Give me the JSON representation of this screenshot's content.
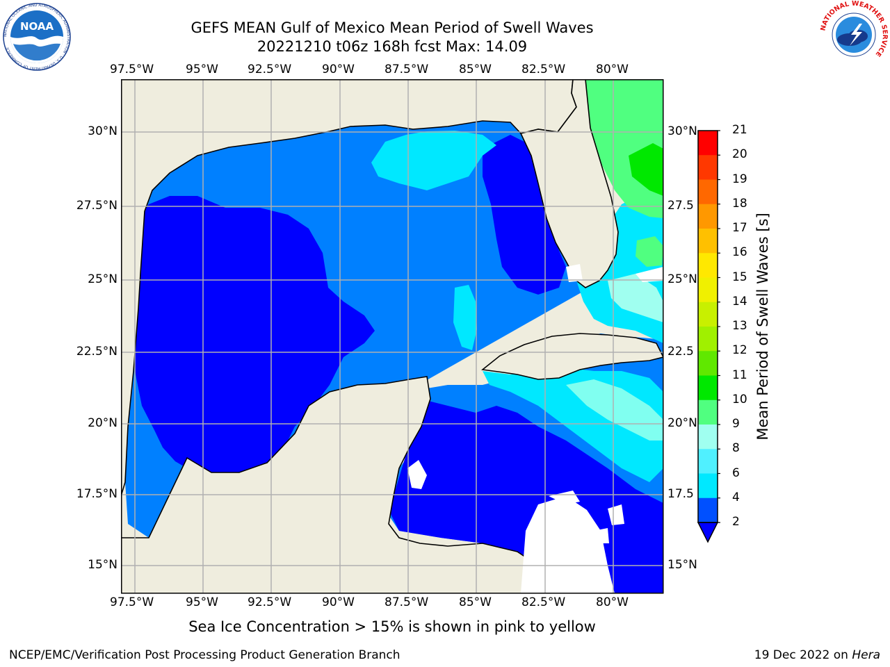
{
  "header": {
    "title": "GEFS MEAN Gulf of Mexico Mean Period of Swell Waves",
    "subtitle": "20221210 t06z 168h fcst   Max: 14.09"
  },
  "logos": {
    "noaa": {
      "text": "NOAA",
      "ring_text": "NATIONAL OCEANIC AND ATMOSPHERIC ADMINISTRATION · U.S. DEPARTMENT OF COMMERCE"
    },
    "nws": {
      "ring_text": "NATIONAL WEATHER SERVICE"
    }
  },
  "map": {
    "lon_labels": [
      "97.5°W",
      "95°W",
      "92.5°W",
      "90°W",
      "87.5°W",
      "85°W",
      "82.5°W",
      "80°W"
    ],
    "lat_labels_left": [
      "30°N",
      "27.5°N",
      "25°N",
      "22.5°N",
      "20°N",
      "17.5°N",
      "15°N"
    ],
    "lat_labels_right": [
      "30°N",
      "27.5",
      "25°N",
      "22.5",
      "20°N",
      "17.5",
      "15°N"
    ],
    "colors": {
      "land": "#efedde",
      "gridline": "#b0b0b0",
      "coast": "#000000"
    }
  },
  "colorbar": {
    "label": "Mean Period of Swell Waves [s]",
    "ticks": [
      "2",
      "4",
      "6",
      "8",
      "9",
      "10",
      "11",
      "12",
      "13",
      "14",
      "15",
      "16",
      "17",
      "18",
      "19",
      "20",
      "21"
    ],
    "colors": [
      "#0050ff",
      "#00c8ff",
      "#00e8ff",
      "#50f0ff",
      "#a0fff0",
      "#50ff80",
      "#00e800",
      "#60e800",
      "#a0f000",
      "#c8f000",
      "#f0f000",
      "#ffe800",
      "#ffc000",
      "#ff9800",
      "#ff6800",
      "#ff3800",
      "#ff0000"
    ],
    "extend_color": "#0000ff"
  },
  "caption": "Sea Ice Concentration > 15% is shown in pink to yellow",
  "footer": {
    "left": "NCEP/EMC/Verification Post Processing Product Generation Branch",
    "date": "19 Dec 2022 on ",
    "host": "Hera"
  }
}
